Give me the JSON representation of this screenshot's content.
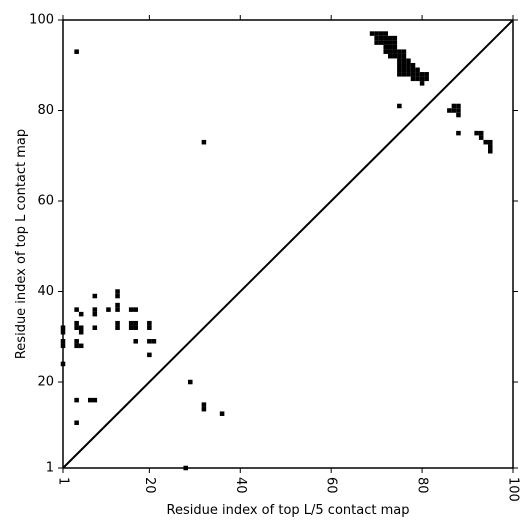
{
  "chart_data": {
    "type": "heatmap",
    "title": "",
    "xlabel": "Residue index of top L/5 contact map",
    "ylabel": "Residue index of top L contact map",
    "xlim": [
      1,
      100
    ],
    "ylim": [
      1,
      100
    ],
    "x_ticks": [
      "1",
      "20",
      "40",
      "60",
      "80",
      "100"
    ],
    "y_ticks": [
      "1",
      "20",
      "40",
      "60",
      "80",
      "100"
    ],
    "x_tick_label_rotation": 90,
    "diagonal": "y = x",
    "grid": false,
    "legend": "none",
    "mark_color": "#000000",
    "contacts_L5_lower_triangle": [
      [
        28,
        1
      ],
      [
        32,
        14
      ],
      [
        32,
        15
      ],
      [
        36,
        13
      ],
      [
        29,
        20
      ]
    ],
    "contacts_L_upper_triangle": [
      [
        1,
        24
      ],
      [
        1,
        28
      ],
      [
        1,
        29
      ],
      [
        1,
        31
      ],
      [
        1,
        32
      ],
      [
        4,
        11
      ],
      [
        4,
        16
      ],
      [
        4,
        28
      ],
      [
        4,
        29
      ],
      [
        4,
        32
      ],
      [
        4,
        33
      ],
      [
        4,
        36
      ],
      [
        4,
        93
      ],
      [
        5,
        28
      ],
      [
        5,
        31
      ],
      [
        5,
        32
      ],
      [
        5,
        35
      ],
      [
        7,
        16
      ],
      [
        8,
        16
      ],
      [
        8,
        32
      ],
      [
        8,
        35
      ],
      [
        8,
        36
      ],
      [
        8,
        39
      ],
      [
        11,
        36
      ],
      [
        13,
        32
      ],
      [
        13,
        33
      ],
      [
        13,
        36
      ],
      [
        13,
        37
      ],
      [
        13,
        39
      ],
      [
        13,
        40
      ],
      [
        16,
        32
      ],
      [
        16,
        33
      ],
      [
        16,
        36
      ],
      [
        17,
        29
      ],
      [
        17,
        32
      ],
      [
        17,
        33
      ],
      [
        17,
        36
      ],
      [
        20,
        26
      ],
      [
        20,
        29
      ],
      [
        20,
        32
      ],
      [
        20,
        33
      ],
      [
        21,
        29
      ],
      [
        32,
        73
      ],
      [
        75,
        81
      ],
      [
        69,
        97
      ],
      [
        70,
        95
      ],
      [
        70,
        96
      ],
      [
        70,
        97
      ],
      [
        71,
        95
      ],
      [
        71,
        96
      ],
      [
        71,
        97
      ],
      [
        72,
        93
      ],
      [
        72,
        94
      ],
      [
        72,
        95
      ],
      [
        72,
        96
      ],
      [
        72,
        97
      ],
      [
        73,
        92
      ],
      [
        73,
        93
      ],
      [
        73,
        94
      ],
      [
        73,
        95
      ],
      [
        73,
        96
      ],
      [
        74,
        92
      ],
      [
        74,
        93
      ],
      [
        74,
        94
      ],
      [
        74,
        95
      ],
      [
        74,
        96
      ],
      [
        75,
        88
      ],
      [
        75,
        89
      ],
      [
        75,
        90
      ],
      [
        75,
        91
      ],
      [
        75,
        92
      ],
      [
        75,
        93
      ],
      [
        76,
        88
      ],
      [
        76,
        89
      ],
      [
        76,
        90
      ],
      [
        76,
        91
      ],
      [
        76,
        92
      ],
      [
        76,
        93
      ],
      [
        77,
        88
      ],
      [
        77,
        89
      ],
      [
        77,
        90
      ],
      [
        77,
        91
      ],
      [
        78,
        87
      ],
      [
        78,
        88
      ],
      [
        78,
        89
      ],
      [
        78,
        90
      ],
      [
        79,
        87
      ],
      [
        79,
        88
      ],
      [
        79,
        89
      ],
      [
        80,
        86
      ],
      [
        80,
        87
      ],
      [
        80,
        88
      ],
      [
        81,
        87
      ],
      [
        81,
        88
      ],
      [
        86,
        80
      ],
      [
        87,
        80
      ],
      [
        87,
        81
      ],
      [
        88,
        79
      ],
      [
        88,
        80
      ],
      [
        88,
        81
      ],
      [
        88,
        75
      ],
      [
        92,
        75
      ],
      [
        93,
        74
      ],
      [
        93,
        75
      ],
      [
        94,
        73
      ],
      [
        95,
        71
      ],
      [
        95,
        72
      ],
      [
        95,
        73
      ]
    ]
  }
}
